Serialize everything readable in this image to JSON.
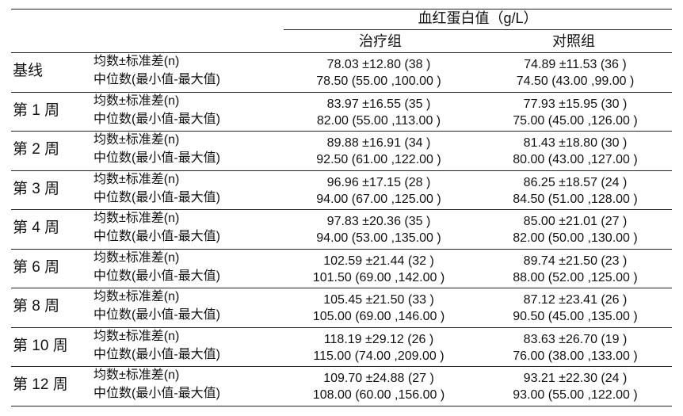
{
  "header": {
    "title": "血红蛋白值（g/L）",
    "groups": [
      "治疗组",
      "对照组"
    ]
  },
  "row_labels": {
    "mean": "均数±标准差(n)",
    "median": "中位数(最小值-最大值)"
  },
  "rows": [
    {
      "period": "基线",
      "treat_mean": "78.03 ±12.80 (38 )",
      "treat_median": "78.50 (55.00 ,100.00 )",
      "ctrl_mean": "74.89 ±11.53 (36 )",
      "ctrl_median": "74.50 (43.00 ,99.00 )"
    },
    {
      "period": "第 1 周",
      "treat_mean": "83.97 ±16.55 (35 )",
      "treat_median": "82.00 (55.00 ,113.00 )",
      "ctrl_mean": "77.93 ±15.95 (30 )",
      "ctrl_median": "75.00 (45.00 ,126.00 )"
    },
    {
      "period": "第 2 周",
      "treat_mean": "89.88 ±16.91 (34 )",
      "treat_median": "92.50 (61.00 ,122.00 )",
      "ctrl_mean": "81.43 ±18.80 (30 )",
      "ctrl_median": "80.00 (43.00 ,127.00 )"
    },
    {
      "period": "第 3 周",
      "treat_mean": "96.96 ±17.15 (28 )",
      "treat_median": "94.00 (67.00 ,125.00 )",
      "ctrl_mean": "86.25 ±18.57 (24 )",
      "ctrl_median": "84.50 (51.00 ,128.00 )"
    },
    {
      "period": "第 4 周",
      "treat_mean": "97.83 ±20.36 (35 )",
      "treat_median": "94.00 (53.00 ,135.00 )",
      "ctrl_mean": "85.00 ±21.01 (27 )",
      "ctrl_median": "82.00 (50.00 ,130.00 )"
    },
    {
      "period": "第 6 周",
      "treat_mean": "102.59 ±21.44 (32 )",
      "treat_median": "101.50 (69.00 ,142.00 )",
      "ctrl_mean": "89.74 ±21.50 (23 )",
      "ctrl_median": "88.00 (52.00 ,125.00 )"
    },
    {
      "period": "第 8 周",
      "treat_mean": "105.45 ±21.50 (33 )",
      "treat_median": "105.00 (69.00 ,146.00 )",
      "ctrl_mean": "87.12 ±23.41 (26 )",
      "ctrl_median": "90.50 (45.00 ,135.00 )"
    },
    {
      "period": "第 10 周",
      "treat_mean": "118.19 ±29.12 (26 )",
      "treat_median": "115.00 (74.00 ,209.00 )",
      "ctrl_mean": "83.63 ±26.70 (19 )",
      "ctrl_median": "76.00 (38.00 ,133.00 )"
    },
    {
      "period": "第 12 周",
      "treat_mean": "109.70 ±24.88 (27 )",
      "treat_median": "108.00 (60.00 ,156.00 )",
      "ctrl_mean": "93.21 ±22.30 (24 )",
      "ctrl_median": "93.00 (55.00 ,122.00 )"
    }
  ]
}
